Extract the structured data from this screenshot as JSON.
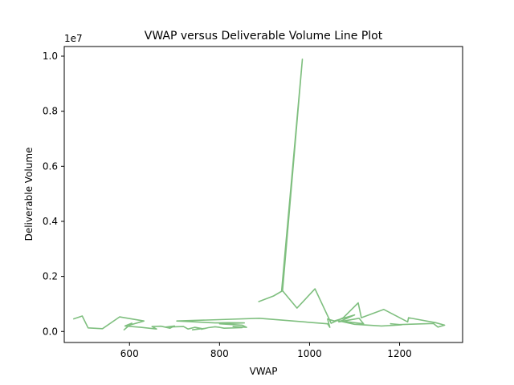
{
  "chart_data": {
    "type": "line",
    "title": "VWAP versus Deliverable Volume Line Plot",
    "xlabel": "VWAP",
    "ylabel": "Deliverable Volume",
    "y_offset_label": "1e7",
    "xlim": [
      455,
      1340
    ],
    "ylim": [
      -400000,
      10350000
    ],
    "xticks": [
      600,
      800,
      1000,
      1200
    ],
    "xtick_labels": [
      "600",
      "800",
      "1000",
      "1200"
    ],
    "yticks": [
      0,
      2000000,
      4000000,
      6000000,
      8000000,
      10000000
    ],
    "ytick_labels": [
      "0.0",
      "0.2",
      "0.4",
      "0.6",
      "0.8",
      "1.0"
    ],
    "grid": false,
    "series": [
      {
        "color": "#7fbf7f",
        "x": [
          475,
          495,
          508,
          540,
          578,
          632,
          600,
          588,
          605,
          590,
          625,
          660,
          650,
          670,
          690,
          700,
          680,
          720,
          730,
          745,
          760,
          740,
          770,
          760,
          775,
          790,
          800,
          810,
          850,
          830,
          860,
          850,
          800,
          855,
          820,
          790,
          705,
          800,
          888,
          1040,
          1045,
          1040,
          1055,
          1100,
          1065,
          1110,
          1120,
          1060,
          1100,
          1160,
          1205,
          1180,
          1200,
          1275,
          1285,
          1300,
          1280,
          1220,
          1218,
          1165,
          1115,
          1108,
          1075,
          1048,
          1012,
          972,
          940,
          938,
          984,
          940,
          920,
          886
        ],
        "y": [
          450000,
          560000,
          130000,
          100000,
          530000,
          380000,
          230000,
          60000,
          300000,
          200000,
          150000,
          90000,
          180000,
          190000,
          120000,
          200000,
          160000,
          180000,
          90000,
          150000,
          110000,
          60000,
          120000,
          80000,
          140000,
          170000,
          150000,
          120000,
          140000,
          180000,
          150000,
          230000,
          280000,
          310000,
          320000,
          310000,
          380000,
          430000,
          480000,
          280000,
          150000,
          450000,
          380000,
          600000,
          350000,
          480000,
          280000,
          400000,
          260000,
          200000,
          240000,
          280000,
          250000,
          290000,
          160000,
          230000,
          320000,
          500000,
          350000,
          800000,
          500000,
          1040000,
          500000,
          300000,
          1550000,
          850000,
          1480000,
          1490000,
          9890000,
          1480000,
          1290000,
          1080000
        ]
      }
    ]
  }
}
